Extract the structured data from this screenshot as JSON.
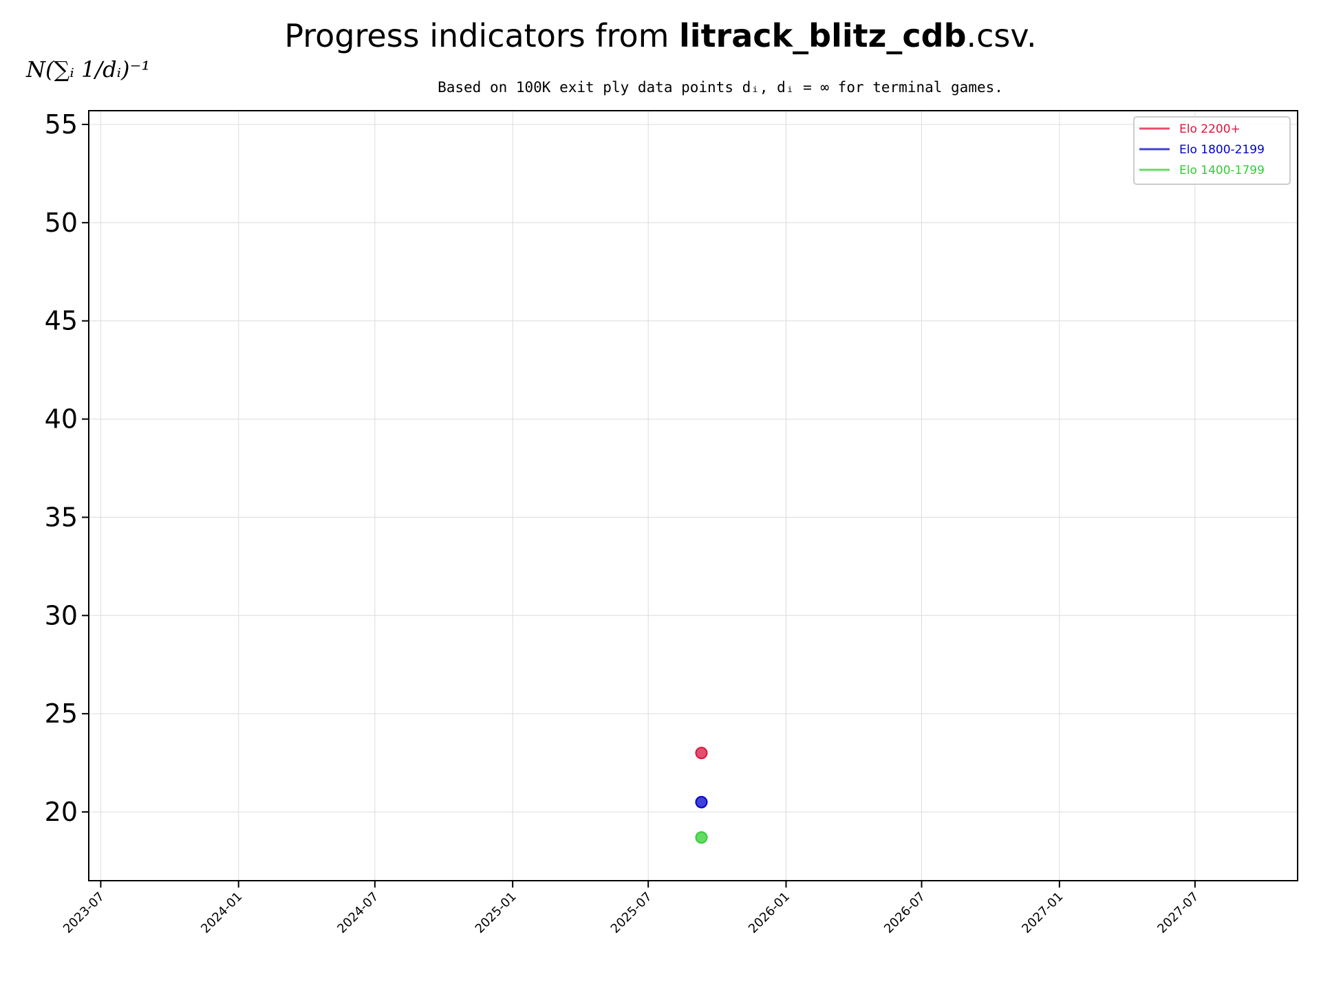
{
  "chart_data": {
    "type": "scatter",
    "title": {
      "prefix": "Progress indicators from ",
      "bold": "litrack_blitz_cdb",
      "suffix": ".csv."
    },
    "subtitle": "Based on 100K exit ply data points dᵢ, dᵢ = ∞ for terminal games.",
    "ylabel": "N(∑ᵢ 1/dᵢ)⁻¹",
    "xlabel": "",
    "xaxis": {
      "type": "date",
      "range": [
        "2023-06-15",
        "2027-11-15"
      ],
      "ticks": [
        "2023-07",
        "2024-01",
        "2024-07",
        "2025-01",
        "2025-07",
        "2026-01",
        "2026-07",
        "2027-01",
        "2027-07"
      ]
    },
    "yaxis": {
      "range": [
        16.5,
        55.7
      ],
      "ticks": [
        20,
        25,
        30,
        35,
        40,
        45,
        50,
        55
      ]
    },
    "grid": true,
    "legend": "top-right",
    "series": [
      {
        "name": "Elo 2200+",
        "color": "#dc143c",
        "points": [
          {
            "x": "2025-09-10",
            "y": 23.0
          }
        ]
      },
      {
        "name": "Elo 1800-2199",
        "color": "#0000cd",
        "points": [
          {
            "x": "2025-09-10",
            "y": 20.5
          }
        ]
      },
      {
        "name": "Elo 1400-1799",
        "color": "#32cd32",
        "points": [
          {
            "x": "2025-09-10",
            "y": 18.7
          }
        ]
      }
    ]
  }
}
